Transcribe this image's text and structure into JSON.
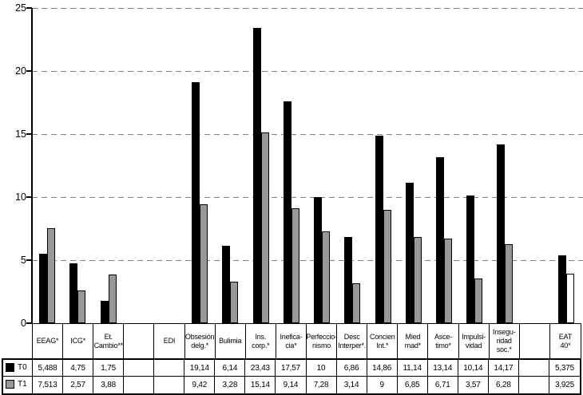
{
  "chart_data": {
    "type": "bar",
    "title": "",
    "xlabel": "",
    "ylabel": "",
    "ylim": [
      0,
      25
    ],
    "yticks": [
      0,
      5,
      10,
      15,
      20,
      25
    ],
    "grid": "horizontal-dashed",
    "legend_position": "attached-table-left",
    "categories": [
      "EEAG*",
      "ICG*",
      "Et.\nCambio**",
      "",
      "EDI",
      "Obsesión\ndelg.*",
      "Bulimia",
      "Ins.\ncorp.*",
      "Inefica-\ncia*",
      "Perfeccio-\nnismo",
      "Desc\nInterper*.",
      "Concien\nInt.*",
      "Mied\nmad*",
      "Asce-\ntimo*",
      "Impulsi-\nvidad",
      "Insegu-\nridad\nsoc.*",
      "",
      "EAT\n40*"
    ],
    "series": [
      {
        "name": "T0",
        "color": "#000000",
        "values": [
          5.488,
          4.75,
          1.75,
          null,
          null,
          19.14,
          6.14,
          23.43,
          17.57,
          10,
          6.86,
          14.86,
          11.14,
          13.14,
          10.14,
          14.17,
          null,
          5.375
        ]
      },
      {
        "name": "T1",
        "color": "#989898",
        "fill_overrides": {
          "17": "#ffffff"
        },
        "values": [
          7.513,
          2.57,
          3.88,
          null,
          null,
          9.42,
          3.28,
          15.14,
          9.14,
          7.28,
          3.14,
          9,
          6.85,
          6.71,
          3.57,
          6.28,
          null,
          3.925
        ]
      }
    ],
    "table": {
      "rows": [
        {
          "label": "T0",
          "swatch_color": "#000000",
          "cells": [
            "5,488",
            "4,75",
            "1,75",
            "",
            "",
            "19,14",
            "6,14",
            "23,43",
            "17,57",
            "10",
            "6,86",
            "14,86",
            "11,14",
            "13,14",
            "10,14",
            "14,17",
            "",
            "5,375"
          ]
        },
        {
          "label": "T1",
          "swatch_color": "#989898",
          "cells": [
            "7,513",
            "2,57",
            "3,88",
            "",
            "",
            "9,42",
            "3,28",
            "15,14",
            "9,14",
            "7,28",
            "3,14",
            "9",
            "6,85",
            "6,71",
            "3,57",
            "6,28",
            "",
            "3,925"
          ]
        }
      ]
    },
    "colors": {
      "bar_t0": "#000000",
      "bar_t1": "#989898",
      "bar_t1_last": "#ffffff",
      "gridline": "#7f7f7f",
      "axis": "#000000",
      "background": "#ffffff"
    }
  }
}
